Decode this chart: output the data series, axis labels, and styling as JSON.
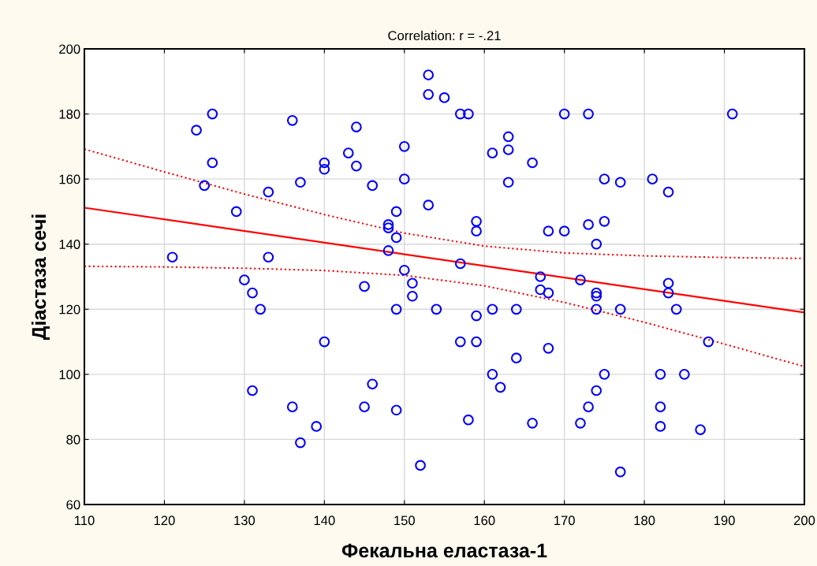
{
  "chart_data": {
    "type": "scatter",
    "title": "Correlation: r = -.21",
    "xlabel": "Фекальна еластаза-1",
    "ylabel": "Діастаза сечі",
    "xlim": [
      110,
      200
    ],
    "xticks": [
      110,
      120,
      130,
      140,
      150,
      160,
      170,
      180,
      190,
      200
    ],
    "ylim": [
      60,
      200
    ],
    "yticks": [
      60,
      80,
      100,
      120,
      140,
      160,
      180,
      200
    ],
    "grid": true,
    "series": [
      {
        "color": "#0000ff",
        "marker": "circle",
        "x": [
          121,
          124,
          125,
          126,
          126,
          129,
          130,
          131,
          131,
          132,
          133,
          133,
          136,
          136,
          137,
          137,
          139,
          140,
          140,
          140,
          143,
          144,
          144,
          145,
          145,
          146,
          146,
          148,
          148,
          148,
          149,
          149,
          149,
          149,
          150,
          150,
          150,
          151,
          151,
          152,
          153,
          153,
          153,
          154,
          155,
          157,
          158,
          157,
          157,
          158,
          159,
          159,
          159,
          159,
          161,
          161,
          161,
          162,
          163,
          163,
          163,
          164,
          164,
          166,
          166,
          167,
          167,
          168,
          168,
          168,
          170,
          170,
          172,
          172,
          173,
          173,
          173,
          174,
          174,
          174,
          174,
          174,
          175,
          175,
          175,
          177,
          177,
          177,
          181,
          182,
          182,
          182,
          183,
          183,
          183,
          184,
          185,
          187,
          188,
          191
        ],
        "values": [
          136,
          175,
          158,
          180,
          165,
          150,
          129,
          125,
          95,
          120,
          156,
          136,
          178,
          90,
          159,
          79,
          84,
          165,
          163,
          110,
          168,
          176,
          164,
          127,
          90,
          158,
          97,
          146,
          145,
          138,
          150,
          142,
          120,
          89,
          170,
          160,
          132,
          128,
          124,
          72,
          192,
          186,
          152,
          120,
          185,
          180,
          180,
          134,
          110,
          86,
          147,
          144,
          118,
          110,
          168,
          120,
          100,
          96,
          173,
          169,
          159,
          120,
          105,
          165,
          85,
          130,
          126,
          144,
          125,
          108,
          180,
          144,
          129,
          85,
          180,
          146,
          90,
          140,
          125,
          124,
          120,
          95,
          160,
          147,
          100,
          159,
          120,
          70,
          160,
          100,
          90,
          84,
          156,
          128,
          125,
          120,
          100,
          83,
          110,
          180
        ]
      },
      {
        "type": "line",
        "color": "#ff0000",
        "line_style": "solid",
        "marker": "none",
        "x": [
          110,
          200
        ],
        "values": [
          151.2,
          119.0
        ]
      },
      {
        "type": "line",
        "color": "#ff0000",
        "line_style": "dotted",
        "marker": "none",
        "x": [
          110,
          120,
          130,
          140,
          150,
          160,
          170,
          180,
          190,
          200
        ],
        "values": [
          169.2,
          162.2,
          155.4,
          149.1,
          143.4,
          139.4,
          137.3,
          136.4,
          135.9,
          135.6
        ]
      },
      {
        "type": "line",
        "color": "#ff0000",
        "line_style": "dotted",
        "marker": "none",
        "x": [
          110,
          120,
          130,
          140,
          150,
          160,
          170,
          180,
          190,
          200
        ],
        "values": [
          133.2,
          133.0,
          132.6,
          131.9,
          130.4,
          127.2,
          122.1,
          116.0,
          109.3,
          102.4
        ]
      }
    ]
  }
}
